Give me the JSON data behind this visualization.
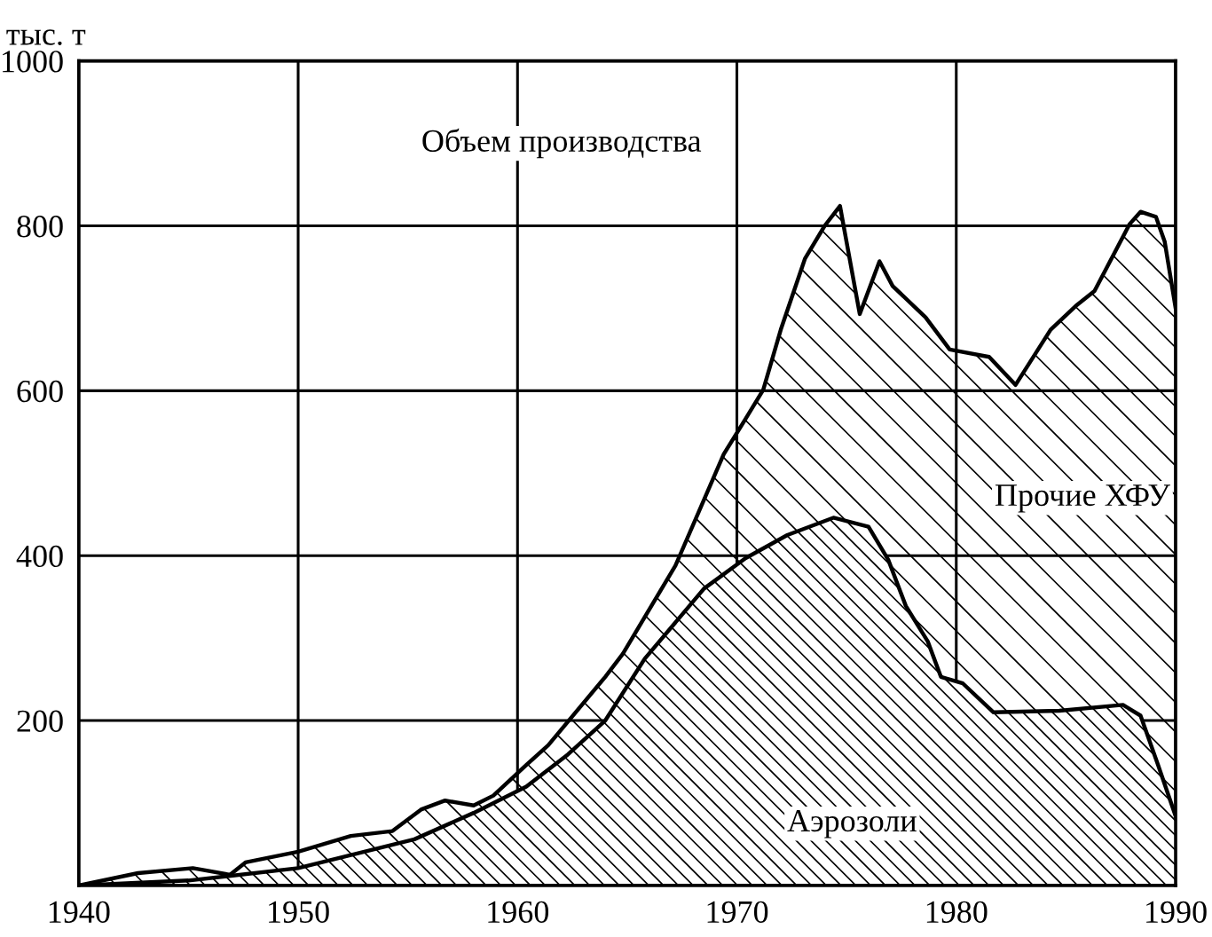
{
  "chart_data": {
    "type": "area",
    "ylabel": "тыс. т",
    "xlim": [
      1940,
      1990
    ],
    "xticks": [
      1940,
      1950,
      1960,
      1970,
      1980,
      1990
    ],
    "ylim": [
      0,
      1000
    ],
    "yticks": [
      200,
      400,
      600,
      800,
      1000
    ],
    "grid": true,
    "legend": false,
    "series": [
      {
        "color": "#000000",
        "x": [
          1940,
          1942.7,
          1945.2,
          1946.9,
          1947.6,
          1950,
          1952.4,
          1954.3,
          1955.6,
          1956.7,
          1958,
          1958.9,
          1960.4,
          1961.4,
          1964,
          1964.8,
          1967.2,
          1969.4,
          1970.4,
          1971.2,
          1972,
          1973.1,
          1974,
          1974.7,
          1975.6,
          1976.5,
          1977.1,
          1978.6,
          1979.7,
          1981.5,
          1982.7,
          1984.3,
          1985.5,
          1986.3,
          1987.9,
          1988.4,
          1989.1,
          1989.5,
          1990
        ],
        "values": [
          0,
          15,
          21,
          13,
          28,
          41,
          60,
          66,
          92,
          103,
          97,
          109,
          146,
          170,
          253,
          281,
          388,
          523,
          566,
          601,
          674,
          760,
          800,
          824,
          693,
          757,
          727,
          689,
          650,
          641,
          607,
          674,
          704,
          721,
          802,
          817,
          811,
          781,
          700
        ]
      },
      {
        "color": "#000000",
        "x": [
          1940,
          1945,
          1950,
          1955.3,
          1958,
          1960.4,
          1962.3,
          1964,
          1965.8,
          1968.5,
          1970.4,
          1972.3,
          1974.4,
          1976,
          1976.9,
          1977.7,
          1978.7,
          1979.3,
          1980.3,
          1981.7,
          1984.7,
          1987.6,
          1988.4,
          1989.2,
          1990
        ],
        "values": [
          0,
          6,
          21,
          56,
          88,
          120,
          159,
          200,
          275,
          360,
          397,
          425,
          446,
          435,
          395,
          339,
          296,
          253,
          245,
          210,
          212,
          219,
          206,
          146,
          84
        ]
      }
    ],
    "annotations": [
      "Объем производства",
      "Прочие ХФУ",
      "Аэрозоли"
    ]
  }
}
